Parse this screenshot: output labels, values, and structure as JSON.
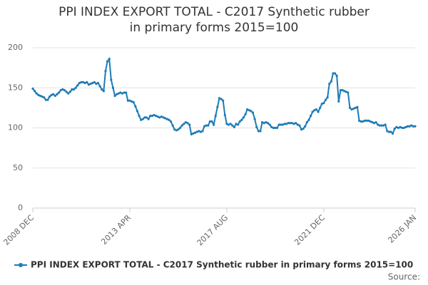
{
  "chart_data": {
    "type": "line",
    "title": "PPI INDEX EXPORT TOTAL - C2017 Synthetic rubber in primary forms 2015=100",
    "source": "Source:",
    "categories": [
      "2008 DEC",
      null,
      null,
      null,
      null,
      null,
      null,
      null,
      null,
      null,
      null,
      null,
      null,
      null,
      null,
      null,
      null,
      null,
      null,
      null,
      null,
      null,
      null,
      null,
      null,
      null,
      null,
      null,
      null,
      null,
      null,
      null,
      null,
      null,
      null,
      null,
      null,
      null,
      null,
      null,
      null,
      null,
      null,
      null,
      null,
      null,
      null,
      null,
      null,
      null,
      null,
      null,
      "2013 APR",
      null,
      null,
      null,
      null,
      null,
      null,
      null,
      null,
      null,
      null,
      null,
      null,
      null,
      null,
      null,
      null,
      null,
      null,
      null,
      null,
      null,
      null,
      null,
      null,
      null,
      null,
      null,
      null,
      null,
      null,
      null,
      null,
      null,
      null,
      null,
      null,
      null,
      null,
      null,
      null,
      null,
      null,
      null,
      null,
      null,
      null,
      null,
      null,
      null,
      null,
      null,
      "2017 AUG",
      null,
      null,
      null,
      null,
      null,
      null,
      null,
      null,
      null,
      null,
      null,
      null,
      null,
      null,
      null,
      null,
      null,
      null,
      null,
      null,
      null,
      null,
      null,
      null,
      null,
      null,
      null,
      null,
      null,
      null,
      null,
      null,
      null,
      null,
      null,
      null,
      null,
      null,
      null,
      null,
      null,
      null,
      null,
      null,
      null,
      null,
      null,
      null,
      null,
      null,
      null,
      "2021 DEC",
      null,
      null,
      null,
      null,
      null,
      null,
      null,
      null,
      null,
      null,
      null,
      null,
      null,
      null,
      null,
      null,
      null,
      null,
      null,
      null,
      null,
      null,
      null,
      null,
      null,
      null,
      null,
      null,
      null,
      null,
      null,
      null,
      null,
      null,
      null,
      null,
      null,
      null,
      null,
      null,
      null,
      null,
      null,
      null,
      null,
      null,
      null,
      null,
      "2026 JAN"
    ],
    "series": [
      {
        "name": "PPI INDEX EXPORT TOTAL - C2017 Synthetic rubber in primary forms 2015=100",
        "color": "#1f7bb6",
        "values": [
          149,
          146,
          143,
          141,
          140,
          139,
          138,
          135,
          135,
          139,
          141,
          142,
          140,
          142,
          144,
          147,
          148,
          147,
          145,
          143,
          145,
          148,
          148,
          150,
          153,
          156,
          157,
          157,
          156,
          157,
          154,
          155,
          156,
          157,
          155,
          156,
          152,
          148,
          146,
          171,
          183,
          186,
          160,
          150,
          140,
          142,
          143,
          144,
          143,
          144,
          144,
          134,
          134,
          133,
          132,
          127,
          121,
          115,
          110,
          111,
          113,
          113,
          111,
          115,
          115,
          116,
          115,
          114,
          113,
          114,
          113,
          112,
          111,
          110,
          108,
          103,
          98,
          97,
          98,
          100,
          103,
          105,
          107,
          106,
          104,
          92,
          93,
          94,
          95,
          96,
          95,
          96,
          102,
          103,
          103,
          108,
          108,
          104,
          115,
          126,
          137,
          136,
          134,
          116,
          105,
          104,
          105,
          103,
          101,
          105,
          104,
          108,
          110,
          113,
          117,
          123,
          122,
          121,
          119,
          111,
          101,
          96,
          96,
          107,
          106,
          107,
          106,
          104,
          101,
          100,
          100,
          100,
          104,
          104,
          104,
          105,
          105,
          106,
          106,
          106,
          105,
          106,
          104,
          103,
          98,
          99,
          102,
          107,
          110,
          115,
          120,
          122,
          123,
          120,
          125,
          130,
          131,
          135,
          138,
          155,
          158,
          168,
          168,
          165,
          133,
          147,
          147,
          146,
          145,
          144,
          125,
          123,
          124,
          125,
          126,
          109,
          108,
          108,
          109,
          109,
          109,
          108,
          107,
          106,
          107,
          104,
          103,
          103,
          103,
          104,
          96,
          95,
          95,
          93,
          99,
          101,
          100,
          101,
          100,
          100,
          101,
          102,
          102,
          103,
          102,
          102
        ]
      }
    ],
    "ylim": [
      0,
      200
    ],
    "yticks": [
      0,
      50,
      100,
      150,
      200
    ],
    "grid": true
  }
}
